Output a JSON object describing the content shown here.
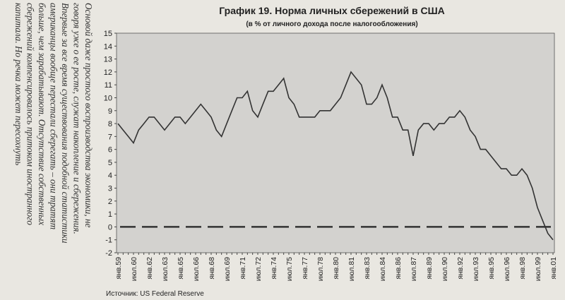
{
  "page_text": {
    "lines": [
      "Основой даже простого воспроизводства экономики, не",
      "говоря уже о ее росте, служат накопление и сбережения.",
      "Впервые за все время существования подобной статистики",
      "американцы вообще перестали сберегать – они тратят",
      "больше, чем зарабатывают. Отсутствие собственных",
      "сбережений компенсировалось притоком иностранного",
      "капитала. Но речка может пересохнуть"
    ]
  },
  "chart_data": {
    "type": "line",
    "title": "График 19. Норма личных сбережений в США",
    "subtitle": "(в % от личного дохода после налогообложения)",
    "source": "Источник: US Federal Reserve",
    "categories": [
      "янв.59",
      null,
      null,
      "июл.60",
      null,
      null,
      "янв.62",
      null,
      null,
      "июл.63",
      null,
      null,
      "янв.65",
      null,
      null,
      "июл.66",
      null,
      null,
      "янв.68",
      null,
      null,
      "июл.69",
      null,
      null,
      "янв.71",
      null,
      null,
      "июл.72",
      null,
      null,
      "янв.74",
      null,
      null,
      "июл.75",
      null,
      null,
      "янв.77",
      null,
      null,
      "июл.78",
      null,
      null,
      "янв.80",
      null,
      null,
      "июл.81",
      null,
      null,
      "янв.83",
      null,
      null,
      "июл.84",
      null,
      null,
      "янв.86",
      null,
      null,
      "июл.87",
      null,
      null,
      "янв.89",
      null,
      null,
      "июл.90",
      null,
      null,
      "янв.92",
      null,
      null,
      "июл.93",
      null,
      null,
      "янв.95",
      null,
      null,
      "июл.96",
      null,
      null,
      "янв.98",
      null,
      null,
      "июл.99",
      null,
      null,
      "янв.01"
    ],
    "values": [
      8.0,
      7.5,
      7.0,
      6.5,
      7.5,
      8.0,
      8.5,
      8.5,
      8.0,
      7.5,
      8.0,
      8.5,
      8.5,
      8.0,
      8.5,
      9.0,
      9.5,
      9.0,
      8.5,
      7.5,
      7.0,
      8.0,
      9.0,
      10.0,
      10.0,
      10.5,
      9.0,
      8.5,
      9.5,
      10.5,
      10.5,
      11.0,
      11.5,
      10.0,
      9.5,
      8.5,
      8.5,
      8.5,
      8.5,
      9.0,
      9.0,
      9.0,
      9.5,
      10.0,
      11.0,
      12.0,
      11.5,
      11.0,
      9.5,
      9.5,
      10.0,
      11.0,
      10.0,
      8.5,
      8.5,
      7.5,
      7.5,
      5.5,
      7.5,
      8.0,
      8.0,
      7.5,
      8.0,
      8.0,
      8.5,
      8.5,
      9.0,
      8.5,
      7.5,
      7.0,
      6.0,
      6.0,
      5.5,
      5.0,
      4.5,
      4.5,
      4.0,
      4.0,
      4.5,
      4.0,
      3.0,
      1.5,
      0.5,
      -0.5,
      -1.0
    ],
    "color": "#333333",
    "ylim": [
      -2,
      15
    ],
    "yticks": [
      -2,
      -1,
      0,
      1,
      2,
      3,
      4,
      5,
      6,
      7,
      8,
      9,
      10,
      11,
      12,
      13,
      14,
      15
    ],
    "reference_line": 0
  }
}
